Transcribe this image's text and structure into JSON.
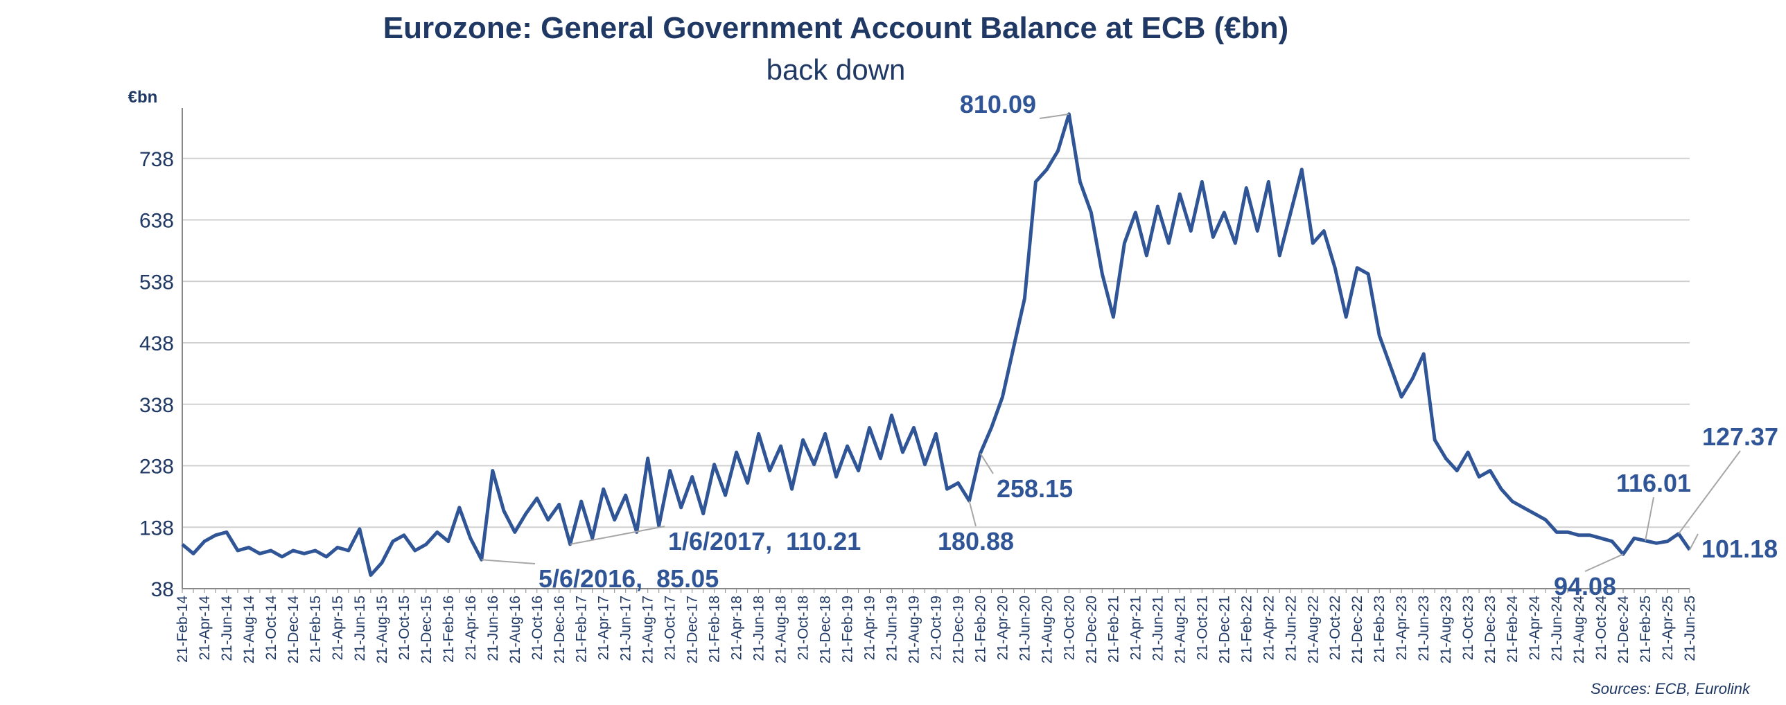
{
  "chart_data": {
    "type": "line",
    "title": "Eurozone: General Government Account Balance at ECB (€bn)",
    "subtitle": "back down",
    "y_label": "€bn",
    "source": "Sources: ECB, Eurolink",
    "categories": [
      "21-Feb-14",
      null,
      "21-Apr-14",
      null,
      "21-Jun-14",
      null,
      "21-Aug-14",
      null,
      "21-Oct-14",
      null,
      "21-Dec-14",
      null,
      "21-Feb-15",
      null,
      "21-Apr-15",
      null,
      "21-Jun-15",
      null,
      "21-Aug-15",
      null,
      "21-Oct-15",
      null,
      "21-Dec-15",
      null,
      "21-Feb-16",
      null,
      "21-Apr-16",
      null,
      "21-Jun-16",
      null,
      "21-Aug-16",
      null,
      "21-Oct-16",
      null,
      "21-Dec-16",
      null,
      "21-Feb-17",
      null,
      "21-Apr-17",
      null,
      "21-Jun-17",
      null,
      "21-Aug-17",
      null,
      "21-Oct-17",
      null,
      "21-Dec-17",
      null,
      "21-Feb-18",
      null,
      "21-Apr-18",
      null,
      "21-Jun-18",
      null,
      "21-Aug-18",
      null,
      "21-Oct-18",
      null,
      "21-Dec-18",
      null,
      "21-Feb-19",
      null,
      "21-Apr-19",
      null,
      "21-Jun-19",
      null,
      "21-Aug-19",
      null,
      "21-Oct-19",
      null,
      "21-Dec-19",
      null,
      "21-Feb-20",
      null,
      "21-Apr-20",
      null,
      "21-Jun-20",
      null,
      "21-Aug-20",
      null,
      "21-Oct-20",
      null,
      "21-Dec-20",
      null,
      "21-Feb-21",
      null,
      "21-Apr-21",
      null,
      "21-Jun-21",
      null,
      "21-Aug-21",
      null,
      "21-Oct-21",
      null,
      "21-Dec-21",
      null,
      "21-Feb-22",
      null,
      "21-Apr-22",
      null,
      "21-Jun-22",
      null,
      "21-Aug-22",
      null,
      "21-Oct-22",
      null,
      "21-Dec-22",
      null,
      "21-Feb-23",
      null,
      "21-Apr-23",
      null,
      "21-Jun-23",
      null,
      "21-Aug-23",
      null,
      "21-Oct-23",
      null,
      "21-Dec-23",
      null,
      "21-Feb-24",
      null,
      "21-Apr-24",
      null,
      "21-Jun-24",
      null,
      "21-Aug-24",
      null,
      "21-Oct-24",
      null,
      "21-Dec-24",
      null,
      "21-Feb-25",
      null,
      "21-Apr-25",
      null,
      "21-Jun-25"
    ],
    "series": [
      {
        "name": "General Government Account Balance",
        "color": "#2f5597",
        "values": [
          110,
          95,
          115,
          125,
          130,
          100,
          105,
          95,
          100,
          90,
          100,
          95,
          100,
          90,
          105,
          100,
          135,
          60,
          80,
          115,
          125,
          100,
          110,
          130,
          115,
          170,
          120,
          85.05,
          230,
          165,
          130,
          160,
          185,
          150,
          175,
          110.21,
          180,
          120,
          200,
          150,
          190,
          130,
          250,
          140,
          230,
          170,
          220,
          160,
          240,
          190,
          260,
          210,
          290,
          230,
          270,
          200,
          280,
          240,
          290,
          220,
          270,
          230,
          300,
          250,
          320,
          260,
          300,
          240,
          290,
          200,
          210,
          180.88,
          258.15,
          300,
          350,
          430,
          510,
          700,
          720,
          750,
          810.09,
          700,
          650,
          550,
          480,
          600,
          650,
          580,
          660,
          600,
          680,
          620,
          700,
          610,
          650,
          600,
          690,
          620,
          700,
          580,
          650,
          720,
          600,
          620,
          560,
          480,
          560,
          550,
          450,
          400,
          350,
          380,
          420,
          280,
          250,
          230,
          260,
          220,
          230,
          200,
          180,
          170,
          160,
          150,
          130,
          130,
          125,
          125,
          120,
          115,
          94.08,
          120,
          116.01,
          112,
          115,
          127.37,
          101.18
        ]
      }
    ],
    "annotations": [
      {
        "value": 810.09,
        "label": "810.09"
      },
      {
        "value": 258.15,
        "label": "258.15"
      },
      {
        "value": 180.88,
        "label": "180.88"
      },
      {
        "value": 110.21,
        "label": "1/6/2017,  110.21"
      },
      {
        "value": 85.05,
        "label": "5/6/2016,  85.05"
      },
      {
        "value": 116.01,
        "label": "116.01"
      },
      {
        "value": 127.37,
        "label": "127.37"
      },
      {
        "value": 101.18,
        "label": "101.18"
      },
      {
        "value": 94.08,
        "label": "94.08"
      }
    ],
    "ylim": [
      38,
      820
    ],
    "yticks": [
      38,
      138,
      238,
      338,
      438,
      538,
      638,
      738
    ],
    "grid": true
  }
}
